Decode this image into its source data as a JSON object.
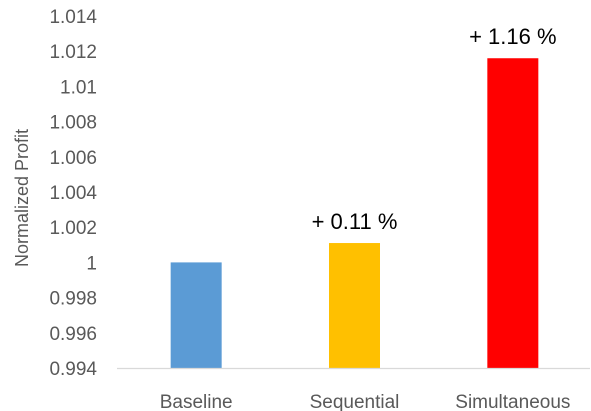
{
  "chart_data": {
    "type": "bar",
    "title": "",
    "xlabel": "",
    "ylabel": "Normalized Profit",
    "ylim": [
      0.994,
      1.014
    ],
    "yticks": [
      "0.994",
      "0.996",
      "0.998",
      "1",
      "1.002",
      "1.004",
      "1.006",
      "1.008",
      "1.01",
      "1.012",
      "1.014"
    ],
    "categories": [
      "Baseline",
      "Sequential",
      "Simultaneous"
    ],
    "values": [
      1.0,
      1.0011,
      1.0116
    ],
    "data_labels": [
      "",
      "+ 0.11 %",
      "+ 1.16 %"
    ],
    "bar_colors": [
      "#5b9bd5",
      "#ffc000",
      "#ff0000"
    ],
    "grid": false,
    "legend": "none"
  }
}
